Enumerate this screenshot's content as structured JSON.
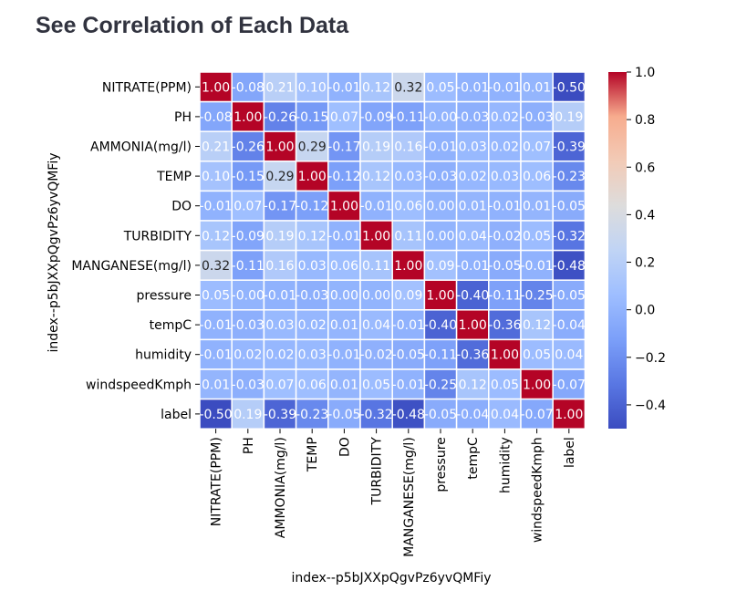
{
  "page": {
    "title": "See Correlation of Each Data"
  },
  "chart_data": {
    "type": "heatmap",
    "xlabel": "index--p5bJXXpQgvPz6yvQMFiy",
    "ylabel": "index--p5bJXXpQgvPz6yvQMFiy",
    "categories": [
      "NITRATE(PPM)",
      "PH",
      "AMMONIA(mg/l)",
      "TEMP",
      "DO",
      "TURBIDITY",
      "MANGANESE(mg/l)",
      "pressure",
      "tempC",
      "humidity",
      "windspeedKmph",
      "label"
    ],
    "values": [
      [
        1.0,
        -0.08,
        0.21,
        0.1,
        -0.01,
        0.12,
        0.32,
        0.05,
        -0.01,
        -0.01,
        0.01,
        -0.5
      ],
      [
        -0.08,
        1.0,
        -0.26,
        -0.15,
        0.07,
        -0.09,
        -0.11,
        -0.0,
        -0.03,
        0.02,
        -0.03,
        0.19
      ],
      [
        0.21,
        -0.26,
        1.0,
        0.29,
        -0.17,
        0.19,
        0.16,
        -0.01,
        0.03,
        0.02,
        0.07,
        -0.39
      ],
      [
        0.1,
        -0.15,
        0.29,
        1.0,
        -0.12,
        0.12,
        0.03,
        -0.03,
        0.02,
        0.03,
        0.06,
        -0.23
      ],
      [
        -0.01,
        0.07,
        -0.17,
        -0.12,
        1.0,
        -0.01,
        0.06,
        0.0,
        0.01,
        -0.01,
        0.01,
        -0.05
      ],
      [
        0.12,
        -0.09,
        0.19,
        0.12,
        -0.01,
        1.0,
        0.11,
        0.0,
        0.04,
        -0.02,
        0.05,
        -0.32
      ],
      [
        0.32,
        -0.11,
        0.16,
        0.03,
        0.06,
        0.11,
        1.0,
        0.09,
        -0.01,
        -0.05,
        -0.01,
        -0.48
      ],
      [
        0.05,
        -0.0,
        -0.01,
        -0.03,
        0.0,
        0.0,
        0.09,
        1.0,
        -0.4,
        -0.11,
        -0.25,
        -0.05
      ],
      [
        -0.01,
        -0.03,
        0.03,
        0.02,
        0.01,
        0.04,
        -0.01,
        -0.4,
        1.0,
        -0.36,
        0.12,
        -0.04
      ],
      [
        -0.01,
        0.02,
        0.02,
        0.03,
        -0.01,
        -0.02,
        -0.05,
        -0.11,
        -0.36,
        1.0,
        0.05,
        0.04
      ],
      [
        0.01,
        -0.03,
        0.07,
        0.06,
        0.01,
        0.05,
        -0.01,
        -0.25,
        0.12,
        0.05,
        1.0,
        -0.07
      ],
      [
        -0.5,
        0.19,
        -0.39,
        -0.23,
        -0.05,
        -0.32,
        -0.48,
        -0.05,
        -0.04,
        0.04,
        -0.07,
        1.0
      ]
    ],
    "colorbar": {
      "colormap": "coolwarm",
      "vmin": -0.5,
      "vmax": 1.0,
      "ticks": [
        "1.0",
        "0.8",
        "0.6",
        "0.4",
        "0.2",
        "0.0",
        "−0.2",
        "−0.4"
      ]
    }
  }
}
